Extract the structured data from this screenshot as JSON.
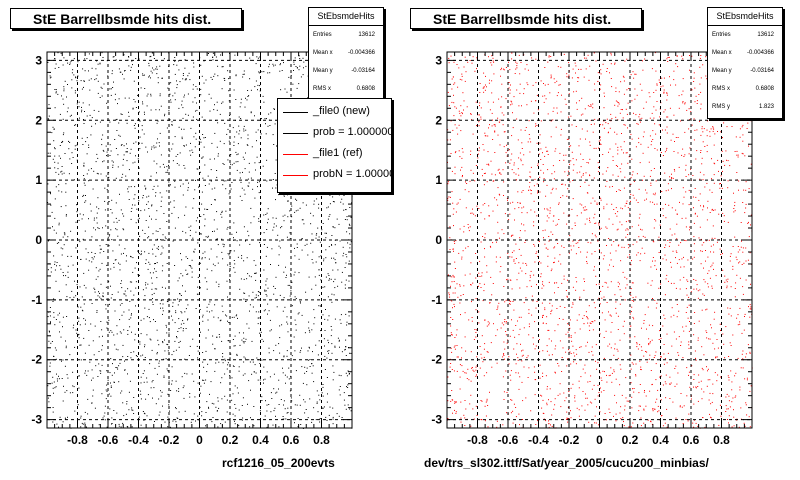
{
  "colors": {
    "marker_left": "#000000",
    "marker_right": "#ff0000",
    "legend_new": "#000000",
    "legend_ref": "#ff0000"
  },
  "panels": [
    {
      "title": "StE BarrelIbsmde hits dist.",
      "stats": {
        "name": "StEbsmdeHits",
        "rows": [
          {
            "label": "Entries",
            "value": "13612"
          },
          {
            "label": "Mean x",
            "value": "-0.004366"
          },
          {
            "label": "Mean y",
            "value": "-0.03164"
          },
          {
            "label": "RMS x",
            "value": "0.6808"
          }
        ]
      },
      "legend": [
        {
          "label": "_file0 (new)",
          "color": "#000000"
        },
        {
          "label": "prob = 1.000000",
          "color": "#000000"
        },
        {
          "label": "_file1 (ref)",
          "color": "#ff0000"
        },
        {
          "label": "probN = 1.000000",
          "color": "#ff0000"
        }
      ],
      "footer": "rcf1216_05_200evts"
    },
    {
      "title": "StE BarrelIbsmde hits dist.",
      "stats": {
        "name": "StEbsmdeHits",
        "rows": [
          {
            "label": "Entries",
            "value": "13612"
          },
          {
            "label": "Mean x",
            "value": "-0.004366"
          },
          {
            "label": "Mean y",
            "value": "-0.03164"
          },
          {
            "label": "RMS x",
            "value": "0.6808"
          },
          {
            "label": "RMS y",
            "value": "1.823"
          }
        ]
      },
      "footer": "dev/trs_sl302.ittf/Sat/year_2005/cucu200_minbias/"
    }
  ],
  "chart_data": [
    {
      "type": "scatter",
      "title": "StE BarrelIbsmde hits dist.",
      "xlabel": "",
      "ylabel": "",
      "xlim": [
        -1.0,
        1.0
      ],
      "ylim": [
        -3.14,
        3.14
      ],
      "x_ticks": [
        -0.8,
        -0.6,
        -0.4,
        -0.2,
        0,
        0.2,
        0.4,
        0.6,
        0.8
      ],
      "y_ticks": [
        -3,
        -2,
        -1,
        0,
        1,
        2,
        3
      ],
      "grid": true,
      "legend_position": "top-right",
      "series": [
        {
          "name": "_file0 (new)",
          "color": "#000000",
          "entries": 13612
        }
      ],
      "stats": {
        "entries": 13612,
        "mean_x": -0.004366,
        "mean_y": -0.03164,
        "rms_x": 0.6808
      }
    },
    {
      "type": "scatter",
      "title": "StE BarrelIbsmde hits dist.",
      "xlabel": "",
      "ylabel": "",
      "xlim": [
        -1.0,
        1.0
      ],
      "ylim": [
        -3.14,
        3.14
      ],
      "x_ticks": [
        -0.8,
        -0.6,
        -0.4,
        -0.2,
        0,
        0.2,
        0.4,
        0.6,
        0.8
      ],
      "y_ticks": [
        -3,
        -2,
        -1,
        0,
        1,
        2,
        3
      ],
      "grid": true,
      "series": [
        {
          "name": "_file1 (ref)",
          "color": "#ff0000",
          "entries": 13612
        }
      ],
      "stats": {
        "entries": 13612,
        "mean_x": -0.004366,
        "mean_y": -0.03164,
        "rms_x": 0.6808,
        "rms_y": 1.823
      }
    }
  ]
}
